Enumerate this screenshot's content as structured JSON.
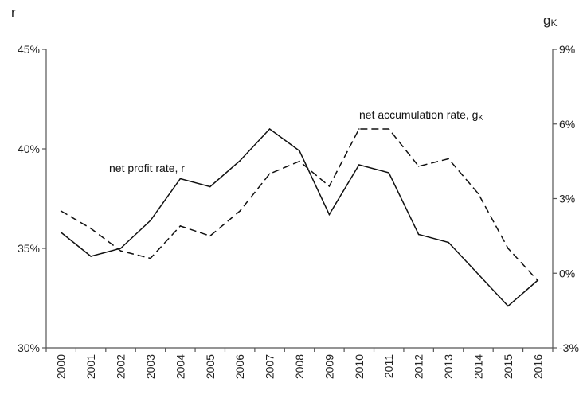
{
  "chart_data": {
    "type": "line",
    "x": [
      "2000",
      "2001",
      "2002",
      "2003",
      "2004",
      "2005",
      "2006",
      "2007",
      "2008",
      "2009",
      "2010",
      "2011",
      "2012",
      "2013",
      "2014",
      "2015",
      "2016"
    ],
    "left_axis": {
      "label": "r",
      "ylim": [
        0.3,
        0.45
      ],
      "ticks": [
        0.3,
        0.35,
        0.4,
        0.45
      ],
      "tick_labels": [
        "30%",
        "35%",
        "40%",
        "45%"
      ]
    },
    "right_axis": {
      "label_main": "g",
      "label_sub": "K",
      "ylim": [
        -0.03,
        0.09
      ],
      "ticks": [
        -0.03,
        0.0,
        0.03,
        0.06,
        0.09
      ],
      "tick_labels": [
        "-3%",
        "0%",
        "3%",
        "6%",
        "9%"
      ]
    },
    "series": [
      {
        "name_main": "net profit rate, r",
        "name_sub": "",
        "axis": "left",
        "style": "solid",
        "color": "#111111",
        "values": [
          0.358,
          0.346,
          0.35,
          0.364,
          0.385,
          0.381,
          0.394,
          0.41,
          0.399,
          0.367,
          0.392,
          0.388,
          0.357,
          0.353,
          0.337,
          0.321,
          0.334
        ]
      },
      {
        "name_main": "net accumulation rate, g",
        "name_sub": "K",
        "axis": "right",
        "style": "dashed",
        "color": "#111111",
        "values": [
          0.025,
          0.018,
          0.009,
          0.006,
          0.019,
          0.015,
          0.025,
          0.04,
          0.045,
          0.035,
          0.058,
          0.058,
          0.043,
          0.046,
          0.032,
          0.01,
          -0.003
        ]
      }
    ],
    "grid": false,
    "legend": "inline"
  }
}
